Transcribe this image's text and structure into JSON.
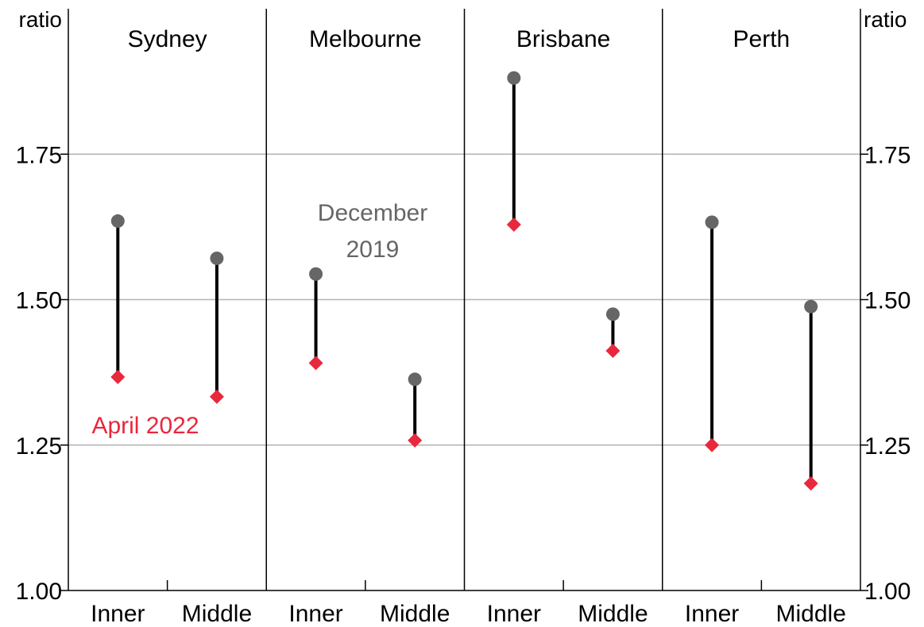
{
  "chart_data": {
    "type": "dumbbell",
    "panels": [
      {
        "title": "Sydney",
        "categories": [
          "Inner",
          "Middle"
        ],
        "dec2019": [
          1.635,
          1.571
        ],
        "apr2022": [
          1.367,
          1.333
        ]
      },
      {
        "title": "Melbourne",
        "categories": [
          "Inner",
          "Middle"
        ],
        "dec2019": [
          1.544,
          1.363
        ],
        "apr2022": [
          1.391,
          1.258
        ]
      },
      {
        "title": "Brisbane",
        "categories": [
          "Inner",
          "Middle"
        ],
        "dec2019": [
          1.881,
          1.475
        ],
        "apr2022": [
          1.629,
          1.412
        ]
      },
      {
        "title": "Perth",
        "categories": [
          "Inner",
          "Middle"
        ],
        "dec2019": [
          1.633,
          1.488
        ],
        "apr2022": [
          1.25,
          1.184
        ]
      }
    ],
    "series": [
      {
        "name": "December 2019",
        "label_lines": [
          "December",
          "2019"
        ],
        "marker": "circle",
        "color": "#666666"
      },
      {
        "name": "April 2022",
        "label_lines": [
          "April 2022"
        ],
        "marker": "diamond",
        "color": "#e8283c"
      }
    ],
    "y_left_label": "ratio",
    "y_right_label": "ratio",
    "y_ticks": [
      1.0,
      1.25,
      1.5,
      1.75
    ],
    "y_tick_labels": [
      "1.00",
      "1.25",
      "1.50",
      "1.75"
    ],
    "ylim": [
      1.0,
      2.0
    ],
    "grid": true,
    "connector_color": "#000000"
  }
}
